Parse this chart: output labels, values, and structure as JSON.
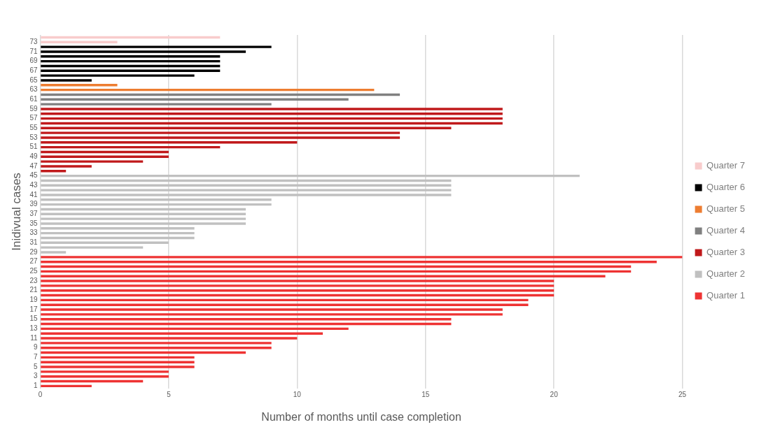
{
  "chart_data": {
    "type": "bar",
    "orientation": "horizontal",
    "xlabel": "Number of months until case completion",
    "ylabel": "Inidivual cases",
    "categories": [
      null,
      "73",
      null,
      "71",
      null,
      "69",
      null,
      "67",
      null,
      "65",
      null,
      "63",
      null,
      "61",
      null,
      "59",
      null,
      "57",
      null,
      "55",
      null,
      "53",
      null,
      "51",
      null,
      "49",
      null,
      "47",
      null,
      "45",
      null,
      "43",
      null,
      "41",
      null,
      "39",
      null,
      "37",
      null,
      "35",
      null,
      "33",
      null,
      "31",
      null,
      "29",
      null,
      "27",
      null,
      "25",
      null,
      "23",
      null,
      "21",
      null,
      "19",
      null,
      "17",
      null,
      "15",
      null,
      "13",
      null,
      "11",
      null,
      "9",
      null,
      "7",
      null,
      "5",
      null,
      "3",
      null,
      "1"
    ],
    "series": [
      {
        "name": "Quarter 1",
        "color": "#ee3333",
        "values": [
          null,
          null,
          null,
          null,
          null,
          null,
          null,
          null,
          null,
          null,
          null,
          null,
          null,
          null,
          null,
          null,
          null,
          null,
          null,
          null,
          null,
          null,
          null,
          null,
          null,
          null,
          null,
          null,
          null,
          null,
          null,
          null,
          null,
          null,
          null,
          null,
          null,
          null,
          null,
          null,
          null,
          null,
          null,
          null,
          null,
          null,
          25,
          24,
          23,
          23,
          22,
          20,
          20,
          20,
          20,
          19,
          19,
          18,
          18,
          16,
          16,
          12,
          11,
          10,
          9,
          9,
          8,
          6,
          6,
          6,
          5,
          5,
          4,
          2
        ]
      },
      {
        "name": "Quarter 2",
        "color": "#c0c0c0",
        "values": [
          null,
          null,
          null,
          null,
          null,
          null,
          null,
          null,
          null,
          null,
          null,
          null,
          null,
          null,
          null,
          null,
          null,
          null,
          null,
          null,
          null,
          null,
          null,
          null,
          null,
          null,
          null,
          null,
          null,
          21,
          16,
          16,
          16,
          16,
          9,
          9,
          8,
          8,
          8,
          8,
          6,
          6,
          6,
          5,
          4,
          1,
          null,
          null,
          null,
          null,
          null,
          null,
          null,
          null,
          null,
          null,
          null,
          null,
          null,
          null,
          null,
          null,
          null,
          null,
          null,
          null,
          null,
          null,
          null,
          null,
          null,
          null,
          null,
          null
        ]
      },
      {
        "name": "Quarter 3",
        "color": "#c0191b",
        "values": [
          null,
          null,
          null,
          null,
          null,
          null,
          null,
          null,
          null,
          null,
          null,
          null,
          null,
          null,
          null,
          18,
          18,
          18,
          18,
          16,
          14,
          14,
          10,
          7,
          5,
          5,
          4,
          2,
          1,
          null,
          null,
          null,
          null,
          null,
          null,
          null,
          null,
          null,
          null,
          null,
          null,
          null,
          null,
          null,
          null,
          null,
          null,
          null,
          null,
          null,
          null,
          null,
          null,
          null,
          null,
          null,
          null,
          null,
          null,
          null,
          null,
          null,
          null,
          null,
          null,
          null,
          null,
          null,
          null,
          null,
          null,
          null,
          null,
          null
        ]
      },
      {
        "name": "Quarter 4",
        "color": "#808080",
        "values": [
          null,
          null,
          null,
          null,
          null,
          null,
          null,
          null,
          null,
          null,
          null,
          null,
          14,
          12,
          9,
          null,
          null,
          null,
          null,
          null,
          null,
          null,
          null,
          null,
          null,
          null,
          null,
          null,
          null,
          null,
          null,
          null,
          null,
          null,
          null,
          null,
          null,
          null,
          null,
          null,
          null,
          null,
          null,
          null,
          null,
          null,
          null,
          null,
          null,
          null,
          null,
          null,
          null,
          null,
          null,
          null,
          null,
          null,
          null,
          null,
          null,
          null,
          null,
          null,
          null,
          null,
          null,
          null,
          null,
          null,
          null,
          null,
          null,
          null
        ]
      },
      {
        "name": "Quarter 5",
        "color": "#ed7d31",
        "values": [
          null,
          null,
          null,
          null,
          null,
          null,
          null,
          null,
          null,
          null,
          3,
          13,
          null,
          null,
          null,
          null,
          null,
          null,
          null,
          null,
          null,
          null,
          null,
          null,
          null,
          null,
          null,
          null,
          null,
          null,
          null,
          null,
          null,
          null,
          null,
          null,
          null,
          null,
          null,
          null,
          null,
          null,
          null,
          null,
          null,
          null,
          null,
          null,
          null,
          null,
          null,
          null,
          null,
          null,
          null,
          null,
          null,
          null,
          null,
          null,
          null,
          null,
          null,
          null,
          null,
          null,
          null,
          null,
          null,
          null,
          null,
          null,
          null,
          null
        ]
      },
      {
        "name": "Quarter 6",
        "color": "#000000",
        "values": [
          null,
          null,
          9,
          8,
          7,
          7,
          7,
          7,
          6,
          2,
          null,
          null,
          null,
          null,
          null,
          null,
          null,
          null,
          null,
          null,
          null,
          null,
          null,
          null,
          null,
          null,
          null,
          null,
          null,
          null,
          null,
          null,
          null,
          null,
          null,
          null,
          null,
          null,
          null,
          null,
          null,
          null,
          null,
          null,
          null,
          null,
          null,
          null,
          null,
          null,
          null,
          null,
          null,
          null,
          null,
          null,
          null,
          null,
          null,
          null,
          null,
          null,
          null,
          null,
          null,
          null,
          null,
          null,
          null,
          null,
          null,
          null,
          null,
          null
        ]
      },
      {
        "name": "Quarter 7",
        "color": "#f8cccc",
        "values": [
          7,
          3,
          null,
          null,
          null,
          null,
          null,
          null,
          null,
          null,
          null,
          null,
          null,
          null,
          null,
          null,
          null,
          null,
          null,
          null,
          null,
          null,
          null,
          null,
          null,
          null,
          null,
          null,
          null,
          null,
          null,
          null,
          null,
          null,
          null,
          null,
          null,
          null,
          null,
          null,
          null,
          null,
          null,
          null,
          null,
          null,
          null,
          null,
          null,
          null,
          null,
          null,
          null,
          null,
          null,
          null,
          null,
          null,
          null,
          null,
          null,
          null,
          null,
          null,
          null,
          null,
          null,
          null,
          null,
          null,
          null,
          null,
          null,
          null
        ]
      }
    ],
    "xlim": [
      0,
      25
    ],
    "xticks": [
      0,
      5,
      10,
      15,
      20,
      25
    ],
    "grid": "x",
    "legend": "right"
  }
}
